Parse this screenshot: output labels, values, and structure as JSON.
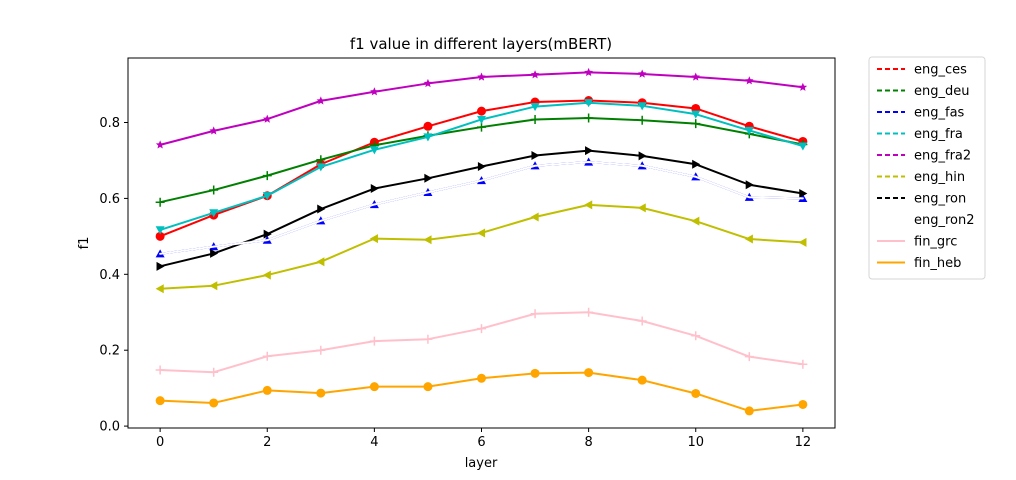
{
  "chart_data": {
    "type": "line",
    "title": "f1 value in different layers(mBERT)",
    "xlabel": "layer",
    "ylabel": "f1",
    "xlim": [
      -0.6,
      12.6
    ],
    "ylim": [
      -0.005,
      0.97
    ],
    "xticks": [
      0,
      2,
      4,
      6,
      8,
      10,
      12
    ],
    "yticks": [
      0.0,
      0.2,
      0.4,
      0.6,
      0.8
    ],
    "ytick_labels": [
      "0.0",
      "0.2",
      "0.4",
      "0.6",
      "0.8"
    ],
    "grid": false,
    "legend_position": "outside-right",
    "x": [
      0,
      1,
      2,
      3,
      4,
      5,
      6,
      7,
      8,
      9,
      10,
      11,
      12
    ],
    "series": [
      {
        "name": "eng_ces",
        "color": "#ff0000",
        "marker": "circle",
        "values": [
          0.5,
          0.556,
          0.607,
          0.69,
          0.748,
          0.79,
          0.83,
          0.854,
          0.858,
          0.852,
          0.837,
          0.79,
          0.75
        ]
      },
      {
        "name": "eng_deu",
        "color": "#008000",
        "marker": "plus",
        "values": [
          0.59,
          0.622,
          0.66,
          0.702,
          0.74,
          0.765,
          0.788,
          0.808,
          0.812,
          0.806,
          0.797,
          0.77,
          0.742
        ]
      },
      {
        "name": "eng_fas",
        "color": "#0000ff",
        "marker": "triangle-up",
        "values": [
          0.454,
          0.473,
          0.49,
          0.541,
          0.584,
          0.616,
          0.647,
          0.686,
          0.696,
          0.686,
          0.657,
          0.603,
          0.6
        ]
      },
      {
        "name": "eng_fra",
        "color": "#00bfbf",
        "marker": "triangle-down",
        "values": [
          0.517,
          0.562,
          0.607,
          0.683,
          0.728,
          0.762,
          0.808,
          0.842,
          0.852,
          0.844,
          0.822,
          0.779,
          0.738
        ]
      },
      {
        "name": "eng_fra2",
        "color": "#bf00bf",
        "marker": "star",
        "values": [
          0.741,
          0.778,
          0.809,
          0.857,
          0.881,
          0.903,
          0.92,
          0.926,
          0.932,
          0.928,
          0.92,
          0.91,
          0.893
        ]
      },
      {
        "name": "eng_hin",
        "color": "#bfbf00",
        "marker": "triangle-left",
        "values": [
          0.362,
          0.37,
          0.398,
          0.433,
          0.494,
          0.491,
          0.509,
          0.551,
          0.583,
          0.575,
          0.54,
          0.493,
          0.484
        ]
      },
      {
        "name": "eng_ron",
        "color": "#000000",
        "marker": "triangle-right",
        "values": [
          0.421,
          0.455,
          0.506,
          0.572,
          0.626,
          0.653,
          0.684,
          0.713,
          0.726,
          0.712,
          0.69,
          0.636,
          0.613
        ]
      },
      {
        "name": "eng_ron2",
        "color": "#ffffff",
        "marker": "none",
        "values": [
          0.454,
          0.473,
          0.49,
          0.541,
          0.584,
          0.616,
          0.647,
          0.686,
          0.696,
          0.686,
          0.657,
          0.603,
          0.6
        ]
      },
      {
        "name": "fin_grc",
        "color": "#ffc0cb",
        "marker": "plus",
        "values": [
          0.148,
          0.142,
          0.184,
          0.2,
          0.224,
          0.229,
          0.257,
          0.296,
          0.3,
          0.277,
          0.238,
          0.183,
          0.163
        ]
      },
      {
        "name": "fin_heb",
        "color": "#ffa500",
        "marker": "circle",
        "values": [
          0.067,
          0.061,
          0.094,
          0.087,
          0.104,
          0.104,
          0.126,
          0.139,
          0.141,
          0.121,
          0.086,
          0.04,
          0.057
        ]
      }
    ]
  }
}
